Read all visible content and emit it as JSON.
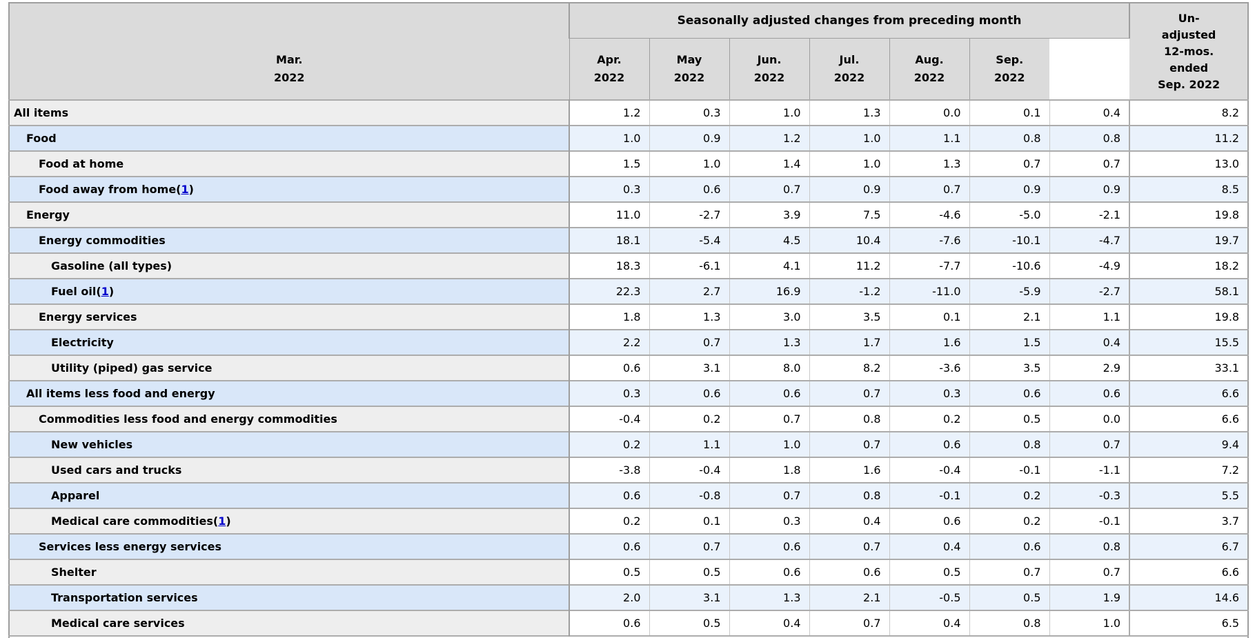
{
  "table": {
    "title": "Seasonally adjusted changes from preceding month",
    "unadjusted_header": "Un-\nadjusted\n12-mos.\nended\nSep. 2022",
    "footnote_wrap": [
      "(",
      ")"
    ],
    "columns": [
      {
        "month": "Mar.",
        "year": "2022"
      },
      {
        "month": "Apr.",
        "year": "2022"
      },
      {
        "month": "May",
        "year": "2022"
      },
      {
        "month": "Jun.",
        "year": "2022"
      },
      {
        "month": "Jul.",
        "year": "2022"
      },
      {
        "month": "Aug.",
        "year": "2022"
      },
      {
        "month": "Sep.",
        "year": "2022"
      }
    ],
    "rows": [
      {
        "label": "All items",
        "indent": 0,
        "footnote": null,
        "values": [
          "1.2",
          "0.3",
          "1.0",
          "1.3",
          "0.0",
          "0.1",
          "0.4",
          "8.2"
        ]
      },
      {
        "label": "Food",
        "indent": 1,
        "footnote": null,
        "values": [
          "1.0",
          "0.9",
          "1.2",
          "1.0",
          "1.1",
          "0.8",
          "0.8",
          "11.2"
        ]
      },
      {
        "label": "Food at home",
        "indent": 2,
        "footnote": null,
        "values": [
          "1.5",
          "1.0",
          "1.4",
          "1.0",
          "1.3",
          "0.7",
          "0.7",
          "13.0"
        ]
      },
      {
        "label": "Food away from home",
        "indent": 2,
        "footnote": "1",
        "values": [
          "0.3",
          "0.6",
          "0.7",
          "0.9",
          "0.7",
          "0.9",
          "0.9",
          "8.5"
        ]
      },
      {
        "label": "Energy",
        "indent": 1,
        "footnote": null,
        "values": [
          "11.0",
          "-2.7",
          "3.9",
          "7.5",
          "-4.6",
          "-5.0",
          "-2.1",
          "19.8"
        ]
      },
      {
        "label": "Energy commodities",
        "indent": 2,
        "footnote": null,
        "values": [
          "18.1",
          "-5.4",
          "4.5",
          "10.4",
          "-7.6",
          "-10.1",
          "-4.7",
          "19.7"
        ]
      },
      {
        "label": "Gasoline (all types)",
        "indent": 3,
        "footnote": null,
        "values": [
          "18.3",
          "-6.1",
          "4.1",
          "11.2",
          "-7.7",
          "-10.6",
          "-4.9",
          "18.2"
        ]
      },
      {
        "label": "Fuel oil",
        "indent": 3,
        "footnote": "1",
        "values": [
          "22.3",
          "2.7",
          "16.9",
          "-1.2",
          "-11.0",
          "-5.9",
          "-2.7",
          "58.1"
        ]
      },
      {
        "label": "Energy services",
        "indent": 2,
        "footnote": null,
        "values": [
          "1.8",
          "1.3",
          "3.0",
          "3.5",
          "0.1",
          "2.1",
          "1.1",
          "19.8"
        ]
      },
      {
        "label": "Electricity",
        "indent": 3,
        "footnote": null,
        "values": [
          "2.2",
          "0.7",
          "1.3",
          "1.7",
          "1.6",
          "1.5",
          "0.4",
          "15.5"
        ]
      },
      {
        "label": "Utility (piped) gas service",
        "indent": 3,
        "footnote": null,
        "values": [
          "0.6",
          "3.1",
          "8.0",
          "8.2",
          "-3.6",
          "3.5",
          "2.9",
          "33.1"
        ]
      },
      {
        "label": "All items less food and energy",
        "indent": 1,
        "footnote": null,
        "values": [
          "0.3",
          "0.6",
          "0.6",
          "0.7",
          "0.3",
          "0.6",
          "0.6",
          "6.6"
        ]
      },
      {
        "label": "Commodities less food and energy commodities",
        "indent": 2,
        "footnote": null,
        "values": [
          "-0.4",
          "0.2",
          "0.7",
          "0.8",
          "0.2",
          "0.5",
          "0.0",
          "6.6"
        ]
      },
      {
        "label": "New vehicles",
        "indent": 3,
        "footnote": null,
        "values": [
          "0.2",
          "1.1",
          "1.0",
          "0.7",
          "0.6",
          "0.8",
          "0.7",
          "9.4"
        ]
      },
      {
        "label": "Used cars and trucks",
        "indent": 3,
        "footnote": null,
        "values": [
          "-3.8",
          "-0.4",
          "1.8",
          "1.6",
          "-0.4",
          "-0.1",
          "-1.1",
          "7.2"
        ]
      },
      {
        "label": "Apparel",
        "indent": 3,
        "footnote": null,
        "values": [
          "0.6",
          "-0.8",
          "0.7",
          "0.8",
          "-0.1",
          "0.2",
          "-0.3",
          "5.5"
        ]
      },
      {
        "label": "Medical care commodities",
        "indent": 3,
        "footnote": "1",
        "values": [
          "0.2",
          "0.1",
          "0.3",
          "0.4",
          "0.6",
          "0.2",
          "-0.1",
          "3.7"
        ]
      },
      {
        "label": "Services less energy services",
        "indent": 2,
        "footnote": null,
        "values": [
          "0.6",
          "0.7",
          "0.6",
          "0.7",
          "0.4",
          "0.6",
          "0.8",
          "6.7"
        ]
      },
      {
        "label": "Shelter",
        "indent": 3,
        "footnote": null,
        "values": [
          "0.5",
          "0.5",
          "0.6",
          "0.6",
          "0.5",
          "0.7",
          "0.7",
          "6.6"
        ]
      },
      {
        "label": "Transportation services",
        "indent": 3,
        "footnote": null,
        "values": [
          "2.0",
          "3.1",
          "1.3",
          "2.1",
          "-0.5",
          "0.5",
          "1.9",
          "14.6"
        ]
      },
      {
        "label": "Medical care services",
        "indent": 3,
        "footnote": null,
        "values": [
          "0.6",
          "0.5",
          "0.4",
          "0.7",
          "0.4",
          "0.8",
          "1.0",
          "6.5"
        ]
      }
    ]
  },
  "colors": {
    "header_bg": "#dbdbdb",
    "row_gray": "#eeeeee",
    "row_blue_label": "#d9e7f9",
    "row_blue_data": "#eaf2fc",
    "link_blue": "#0000cc",
    "border_dark": "#9e9e9e"
  }
}
